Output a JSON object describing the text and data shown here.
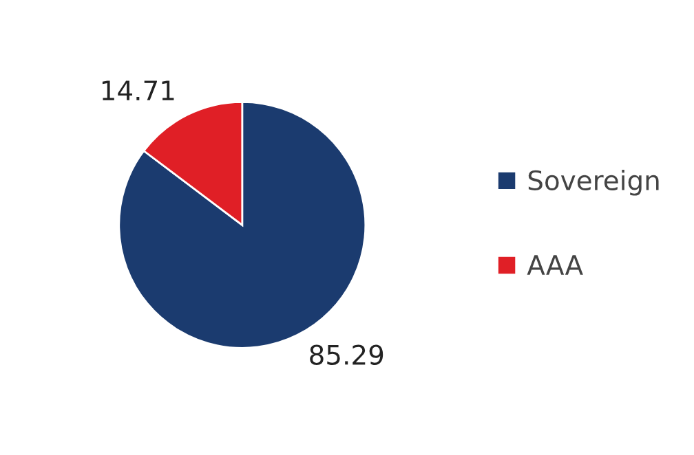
{
  "chart_data": {
    "type": "pie",
    "categories": [
      "Sovereign",
      "AAA"
    ],
    "values": [
      85.29,
      14.71
    ],
    "colors": [
      "#1b3b6f",
      "#e01f26"
    ],
    "data_labels": true,
    "legend": "right"
  }
}
